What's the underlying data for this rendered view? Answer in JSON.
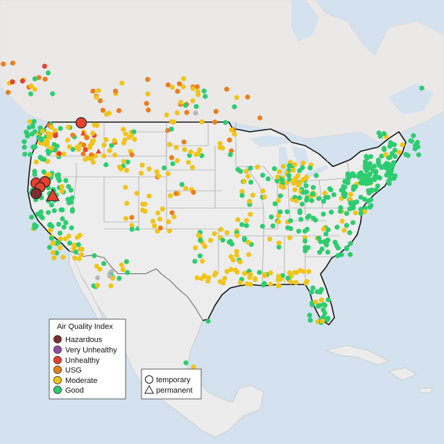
{
  "legend_aqi": {
    "title": "Air Quality Index",
    "items": [
      {
        "label": "Hazardous",
        "color": "#7e2e2e"
      },
      {
        "label": "Very Unhealthy",
        "color": "#8e4fa3"
      },
      {
        "label": "Unhealthy",
        "color": "#e8412f"
      },
      {
        "label": "USG",
        "color": "#ec7d1c"
      },
      {
        "label": "Moderate",
        "color": "#f0c419"
      },
      {
        "label": "Good",
        "color": "#2ecc71"
      }
    ]
  },
  "legend_monitor": {
    "items": [
      {
        "label": "temporary",
        "shape": "circle"
      },
      {
        "label": "permanent",
        "shape": "triangle"
      }
    ]
  },
  "colors": {
    "water": "#d3e2ee",
    "land": "#ececec",
    "land_us": "#eeeeee",
    "border": "#111111",
    "state_line": "#8c8c8c",
    "no_data": "#b8b8b8"
  }
}
